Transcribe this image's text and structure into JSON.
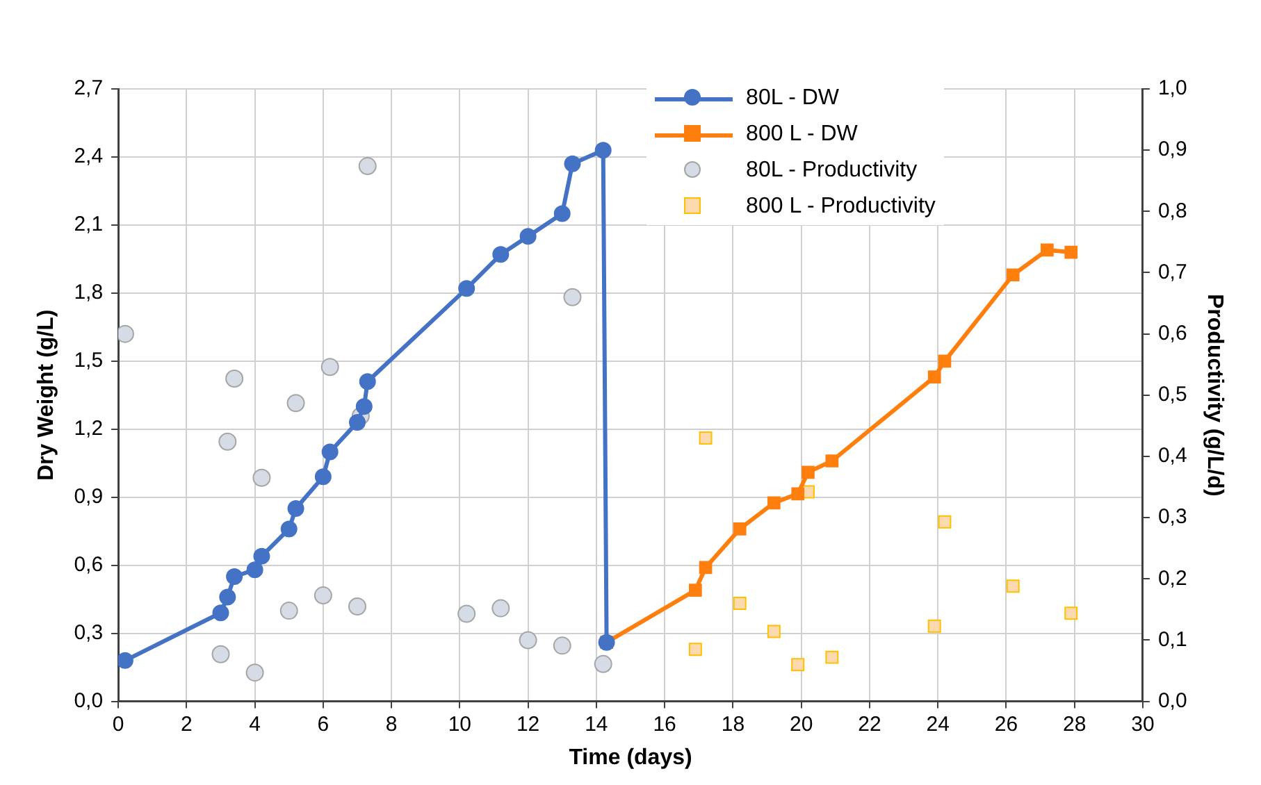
{
  "chart_data": {
    "type": "line",
    "xlabel": "Time (days)",
    "ylabel": "Dry Weight (g/L)",
    "y2label": "Productivity (g/L/d)",
    "xlim": [
      0,
      30
    ],
    "xticks": [
      0,
      2,
      4,
      6,
      8,
      10,
      12,
      14,
      16,
      18,
      20,
      22,
      24,
      26,
      28,
      30
    ],
    "ylim": [
      0,
      2.7
    ],
    "yticks": [
      {
        "value": 0,
        "label": "0,0"
      },
      {
        "value": 0.3,
        "label": "0,3"
      },
      {
        "value": 0.6,
        "label": "0,6"
      },
      {
        "value": 0.9,
        "label": "0,9"
      },
      {
        "value": 1.2,
        "label": "1,2"
      },
      {
        "value": 1.5,
        "label": "1,5"
      },
      {
        "value": 1.8,
        "label": "1,8"
      },
      {
        "value": 2.1,
        "label": "2,1"
      },
      {
        "value": 2.4,
        "label": "2,4"
      },
      {
        "value": 2.7,
        "label": "2,7"
      }
    ],
    "y2lim": [
      0,
      1
    ],
    "y2ticks": [
      {
        "value": 0,
        "label": "0,0"
      },
      {
        "value": 0.1,
        "label": "0,1"
      },
      {
        "value": 0.2,
        "label": "0,2"
      },
      {
        "value": 0.3,
        "label": "0,3"
      },
      {
        "value": 0.4,
        "label": "0,4"
      },
      {
        "value": 0.5,
        "label": "0,5"
      },
      {
        "value": 0.6,
        "label": "0,6"
      },
      {
        "value": 0.7,
        "label": "0,7"
      },
      {
        "value": 0.8,
        "label": "0,8"
      },
      {
        "value": 0.9,
        "label": "0,9"
      },
      {
        "value": 1,
        "label": "1,0"
      }
    ],
    "grid": true,
    "legend": "top",
    "line_style": "solid",
    "series": [
      {
        "name": "80L - DW",
        "type": "line",
        "marker": "circle",
        "color": "#4472c4",
        "x": [
          0.2,
          3,
          3.2,
          3.4,
          4,
          4.2,
          5,
          5.2,
          6,
          6.2,
          7,
          7.2,
          7.3,
          10.2,
          11.2,
          12,
          13,
          13.3,
          14.2,
          14.3
        ],
        "values": [
          0.18,
          0.39,
          0.46,
          0.55,
          0.58,
          0.64,
          0.76,
          0.85,
          0.99,
          1.1,
          1.23,
          1.3,
          1.41,
          1.82,
          1.97,
          2.05,
          2.15,
          2.37,
          2.43,
          0.26
        ]
      },
      {
        "name": "800 L - DW",
        "type": "line",
        "marker": "square",
        "color": "#ff7f0e",
        "x": [
          14.3,
          16.9,
          17.2,
          18.2,
          19.2,
          19.9,
          20.2,
          20.9,
          23.9,
          24.2,
          26.2,
          27.2,
          27.9
        ],
        "values": [
          0.26,
          0.49,
          0.59,
          0.76,
          0.875,
          0.915,
          1.01,
          1.06,
          1.43,
          1.5,
          1.88,
          1.99,
          1.98
        ]
      },
      {
        "name": "80L - Productivity",
        "type": "scatter",
        "marker": "circle",
        "axis": "y2",
        "color": "#d6dce5",
        "x": [
          0.2,
          3,
          3.2,
          3.4,
          4,
          4.2,
          5,
          5.2,
          6,
          6.2,
          7,
          7.1,
          7.3,
          10.2,
          11.2,
          12,
          13,
          13.3,
          14.2
        ],
        "values": [
          0.6,
          0.077,
          0.424,
          0.527,
          0.047,
          0.365,
          0.148,
          0.487,
          0.173,
          0.546,
          0.155,
          0.466,
          0.874,
          0.143,
          0.152,
          0.1,
          0.091,
          0.66,
          0.061
        ]
      },
      {
        "name": "800 L - Productivity",
        "type": "scatter",
        "marker": "square",
        "axis": "y2",
        "color": "#fdd9b0",
        "x": [
          16.9,
          17.2,
          18.2,
          19.2,
          19.9,
          20.2,
          20.9,
          23.9,
          24.2,
          26.2,
          27.9
        ],
        "values": [
          0.085,
          0.43,
          0.16,
          0.114,
          0.06,
          0.342,
          0.072,
          0.123,
          0.293,
          0.188,
          0.144
        ]
      }
    ]
  }
}
